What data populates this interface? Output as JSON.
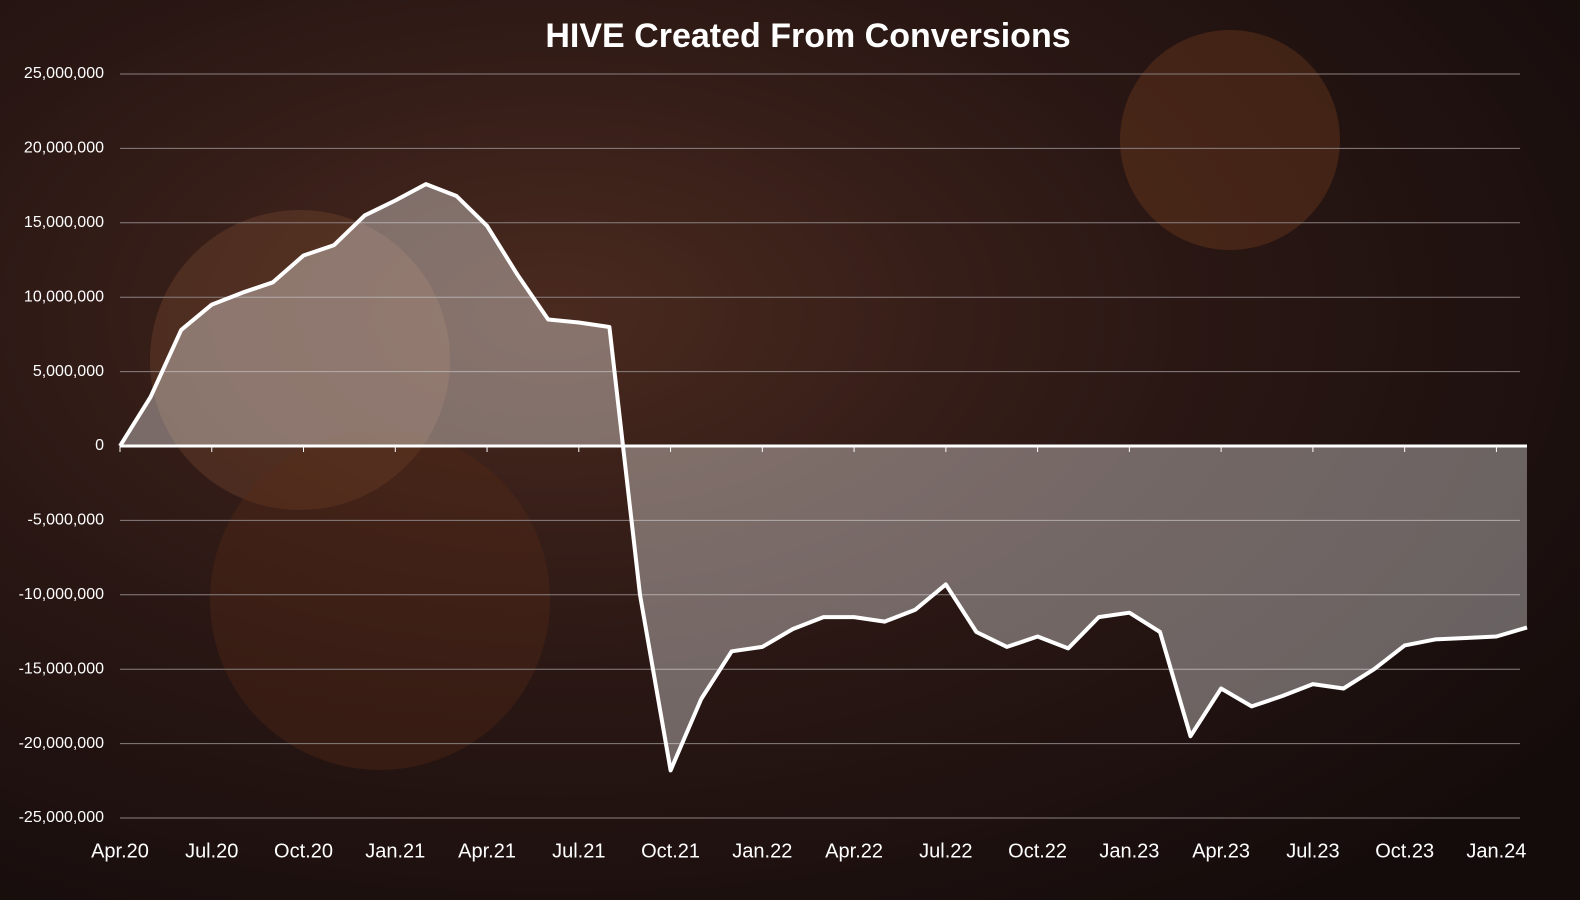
{
  "chart_data": {
    "type": "area",
    "title": "HIVE Created From Conversions",
    "x": [
      "2020-04",
      "2020-05",
      "2020-06",
      "2020-07",
      "2020-08",
      "2020-09",
      "2020-10",
      "2020-11",
      "2020-12",
      "2021-01",
      "2021-02",
      "2021-03",
      "2021-04",
      "2021-05",
      "2021-06",
      "2021-07",
      "2021-08",
      "2021-09",
      "2021-10",
      "2021-11",
      "2021-12",
      "2022-01",
      "2022-02",
      "2022-03",
      "2022-04",
      "2022-05",
      "2022-06",
      "2022-07",
      "2022-08",
      "2022-09",
      "2022-10",
      "2022-11",
      "2022-12",
      "2023-01",
      "2023-02",
      "2023-03",
      "2023-04",
      "2023-05",
      "2023-06",
      "2023-07",
      "2023-08",
      "2023-09",
      "2023-10",
      "2023-11",
      "2023-12",
      "2024-01",
      "2024-02"
    ],
    "series": [
      {
        "name": "HIVE Created From Conversions",
        "color": "#ffffff",
        "values": [
          0,
          3300000,
          7800000,
          9500000,
          10300000,
          11000000,
          12800000,
          13500000,
          15500000,
          16500000,
          17600000,
          16800000,
          14800000,
          11500000,
          8500000,
          8300000,
          8000000,
          -10000000,
          -21800000,
          -17000000,
          -13800000,
          -13500000,
          -12300000,
          -11500000,
          -11500000,
          -11800000,
          -11000000,
          -9300000,
          -12500000,
          -13500000,
          -12800000,
          -13600000,
          -11500000,
          -11200000,
          -12500000,
          -19500000,
          -16300000,
          -17500000,
          -16800000,
          -16000000,
          -16300000,
          -15000000,
          -13400000,
          -13000000,
          -12900000,
          -12800000,
          -12200000
        ]
      }
    ],
    "xlim": [
      "2020-04",
      "2024-02"
    ],
    "xticks": [
      {
        "value": "2020-04",
        "label": "Apr.20"
      },
      {
        "value": "2020-07",
        "label": "Jul.20"
      },
      {
        "value": "2020-10",
        "label": "Oct.20"
      },
      {
        "value": "2021-01",
        "label": "Jan.21"
      },
      {
        "value": "2021-04",
        "label": "Apr.21"
      },
      {
        "value": "2021-07",
        "label": "Jul.21"
      },
      {
        "value": "2021-10",
        "label": "Oct.21"
      },
      {
        "value": "2022-01",
        "label": "Jan.22"
      },
      {
        "value": "2022-04",
        "label": "Apr.22"
      },
      {
        "value": "2022-07",
        "label": "Jul.22"
      },
      {
        "value": "2022-10",
        "label": "Oct.22"
      },
      {
        "value": "2023-01",
        "label": "Jan.23"
      },
      {
        "value": "2023-04",
        "label": "Apr.23"
      },
      {
        "value": "2023-07",
        "label": "Jul.23"
      },
      {
        "value": "2023-10",
        "label": "Oct.23"
      },
      {
        "value": "2024-01",
        "label": "Jan.24"
      }
    ],
    "ylim": [
      -25000000,
      25000000
    ],
    "yticks": [
      {
        "value": -25000000,
        "label": "-25,000,000"
      },
      {
        "value": -20000000,
        "label": "-20,000,000"
      },
      {
        "value": -15000000,
        "label": "-15,000,000"
      },
      {
        "value": -10000000,
        "label": "-10,000,000"
      },
      {
        "value": -5000000,
        "label": "-5,000,000"
      },
      0,
      {
        "value": 5000000,
        "label": "5,000,000"
      },
      {
        "value": 10000000,
        "label": "10,000,000"
      },
      {
        "value": 15000000,
        "label": "15,000,000"
      },
      {
        "value": 20000000,
        "label": "20,000,000"
      },
      {
        "value": 25000000,
        "label": "25,000,000"
      }
    ],
    "grid": true
  }
}
